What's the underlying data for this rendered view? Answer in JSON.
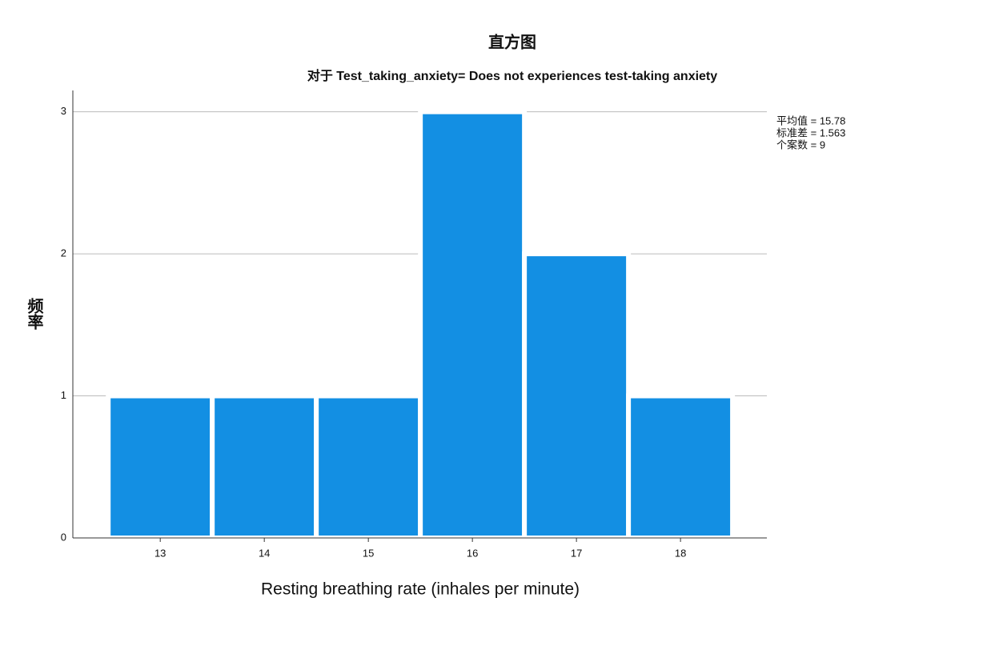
{
  "chart_data": {
    "type": "histogram",
    "title": "直方图",
    "subtitle": "对于 Test_taking_anxiety= Does not experiences test-taking anxiety",
    "x_label": "Resting breathing rate (inhales per minute)",
    "y_label": "频率",
    "bins": [
      12.5,
      13.5,
      14.5,
      15.5,
      16.5,
      17.5,
      18.5
    ],
    "values": [
      1,
      1,
      1,
      3,
      2,
      1
    ],
    "color": "#138fe3",
    "xlim": [
      12.16,
      18.83
    ],
    "xticks": [
      13,
      14,
      15,
      16,
      17,
      18
    ],
    "ylim": [
      0,
      3.15
    ],
    "yticks": [
      0,
      1,
      2,
      3
    ],
    "grid": true,
    "annotations": [
      "平均值 = 15.78",
      "标准差 = 1.563",
      "个案数 = 9"
    ]
  }
}
